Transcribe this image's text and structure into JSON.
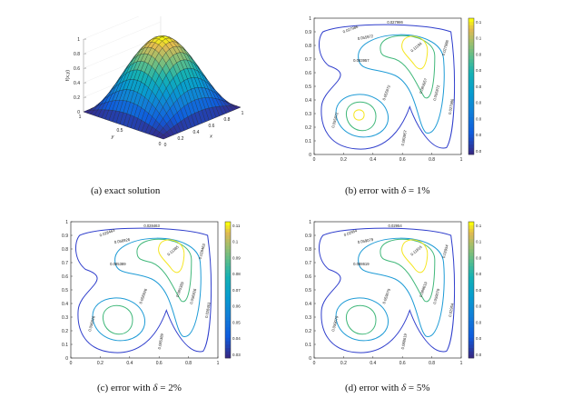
{
  "figures": [
    {
      "id": "a",
      "caption_label": "(a)",
      "caption_text": "exact solution",
      "type": "surface",
      "axis": {
        "x_label": "x",
        "y_label": "y",
        "z_label": "f(x,y)",
        "x_ticks": [
          "0",
          "0.2",
          "0.4",
          "0.6",
          "0.8",
          "1"
        ],
        "y_ticks": [
          "0",
          "0.5",
          "1"
        ],
        "z_ticks": [
          "0",
          "0.2",
          "0.4",
          "0.6",
          "0.8",
          "1"
        ]
      }
    },
    {
      "id": "b",
      "caption_label": "(b)",
      "caption_pre": "error with",
      "caption_delta": "δ",
      "caption_post": "= 1%",
      "type": "contour",
      "x_ticks": [
        "0",
        "0.2",
        "0.4",
        "0.6",
        "0.8",
        "1"
      ],
      "y_ticks": [
        "0",
        "0.1",
        "0.2",
        "0.3",
        "0.4",
        "0.5",
        "0.6",
        "0.7",
        "0.8",
        "0.9",
        "1"
      ],
      "colorbar_ticks": [
        "0.03",
        "0.04",
        "0.05",
        "0.06",
        "0.07",
        "0.08",
        "0.09",
        "0.1",
        "0.11"
      ],
      "contour_labels": [
        "0.027986",
        "0.055972",
        "0.083957",
        "0.11194"
      ]
    },
    {
      "id": "c",
      "caption_label": "(c)",
      "caption_pre": "error with",
      "caption_delta": "δ",
      "caption_post": "= 2%",
      "type": "contour",
      "x_ticks": [
        "0",
        "0.2",
        "0.4",
        "0.6",
        "0.8",
        "1"
      ],
      "y_ticks": [
        "0",
        "0.1",
        "0.2",
        "0.3",
        "0.4",
        "0.5",
        "0.6",
        "0.7",
        "0.8",
        "0.9",
        "1"
      ],
      "colorbar_ticks": [
        "0.03",
        "0.04",
        "0.05",
        "0.06",
        "0.07",
        "0.08",
        "0.09",
        "0.1",
        "0.11"
      ],
      "contour_labels": [
        "0.028463",
        "0.056926",
        "0.085389",
        "0.11385"
      ]
    },
    {
      "id": "d",
      "caption_label": "(d)",
      "caption_pre": "error with",
      "caption_delta": "δ",
      "caption_post": "= 5%",
      "type": "contour",
      "x_ticks": [
        "0",
        "0.2",
        "0.4",
        "0.6",
        "0.8",
        "1"
      ],
      "y_ticks": [
        "0",
        "0.1",
        "0.2",
        "0.3",
        "0.4",
        "0.5",
        "0.6",
        "0.7",
        "0.8",
        "0.9",
        "1"
      ],
      "colorbar_ticks": [
        "0.03",
        "0.04",
        "0.05",
        "0.06",
        "0.07",
        "0.08",
        "0.09",
        "0.1",
        "0.11"
      ],
      "contour_labels": [
        "0.02954",
        "0.059079",
        "0.088619",
        "0.11816"
      ]
    }
  ],
  "colors": {
    "c1": "#2f3ecc",
    "c2": "#1e9bd6",
    "c3": "#41b87a",
    "c4": "#f5e61f"
  }
}
